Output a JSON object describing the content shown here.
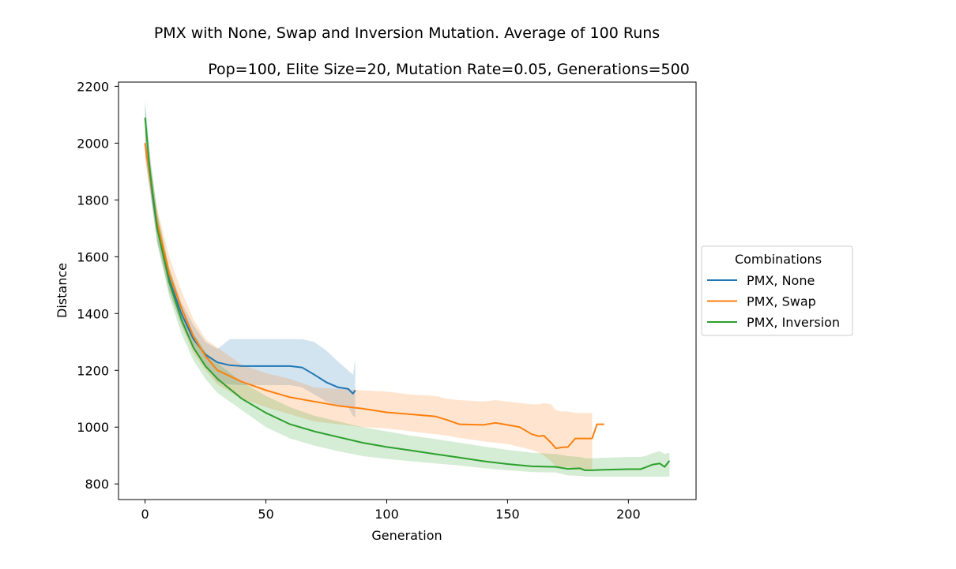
{
  "chart_data": {
    "type": "line",
    "suptitle": "PMX with None, Swap and Inversion Mutation. Average of 100 Runs",
    "title": "Pop=100, Elite Size=20, Mutation Rate=0.05, Generations=500",
    "xlabel": "Generation",
    "ylabel": "Distance",
    "xlim": [
      -11,
      228
    ],
    "ylim": [
      745,
      2215
    ],
    "xticks": [
      0,
      50,
      100,
      150,
      200
    ],
    "yticks": [
      800,
      1000,
      1200,
      1400,
      1600,
      1800,
      2000,
      2200
    ],
    "legend_title": "Combinations",
    "legend_position": "right, outside plot",
    "series": [
      {
        "name": "PMX, None",
        "color": "#1f77b4",
        "x": [
          0,
          2,
          5,
          10,
          15,
          20,
          25,
          30,
          35,
          40,
          50,
          60,
          65,
          70,
          75,
          80,
          84,
          86,
          87
        ],
        "y": [
          2000,
          1880,
          1700,
          1520,
          1400,
          1310,
          1255,
          1228,
          1218,
          1215,
          1215,
          1215,
          1210,
          1185,
          1158,
          1140,
          1135,
          1118,
          1130
        ],
        "lower": [
          1950,
          1830,
          1650,
          1475,
          1360,
          1280,
          1218,
          1160,
          1150,
          1148,
          1148,
          1148,
          1140,
          1115,
          1090,
          1075,
          1070,
          1040,
          1035
        ],
        "upper": [
          2150,
          1960,
          1750,
          1560,
          1440,
          1360,
          1300,
          1275,
          1310,
          1310,
          1310,
          1310,
          1310,
          1300,
          1270,
          1230,
          1200,
          1185,
          1240
        ]
      },
      {
        "name": "PMX, Swap",
        "color": "#ff7f0e",
        "x": [
          0,
          2,
          5,
          10,
          15,
          20,
          25,
          30,
          40,
          50,
          60,
          70,
          80,
          90,
          100,
          110,
          120,
          125,
          130,
          140,
          145,
          150,
          155,
          160,
          163,
          165,
          168,
          170,
          172,
          175,
          178,
          180,
          185,
          187,
          190
        ],
        "y": [
          2000,
          1880,
          1720,
          1540,
          1420,
          1320,
          1250,
          1200,
          1160,
          1130,
          1105,
          1090,
          1075,
          1065,
          1052,
          1045,
          1038,
          1025,
          1010,
          1008,
          1015,
          1008,
          1000,
          975,
          968,
          970,
          945,
          925,
          928,
          930,
          960,
          960,
          960,
          1010,
          1010
        ],
        "lower": [
          1950,
          1830,
          1660,
          1480,
          1360,
          1260,
          1200,
          1150,
          1100,
          1070,
          1045,
          1020,
          1010,
          1000,
          995,
          985,
          975,
          970,
          962,
          950,
          945,
          940,
          930,
          920,
          910,
          900,
          880,
          862,
          860,
          860,
          850,
          850,
          850,
          null,
          null
        ],
        "upper": [
          2050,
          1930,
          1770,
          1600,
          1480,
          1380,
          1310,
          1280,
          1220,
          1190,
          1170,
          1140,
          1135,
          1130,
          1125,
          1115,
          1110,
          1100,
          1095,
          1090,
          1095,
          1090,
          1085,
          1080,
          1080,
          1085,
          1080,
          1060,
          1055,
          1055,
          1050,
          1050,
          1050,
          null,
          null
        ]
      },
      {
        "name": "PMX, Inversion",
        "color": "#2ca02c",
        "x": [
          0,
          2,
          5,
          10,
          15,
          20,
          25,
          30,
          40,
          50,
          60,
          70,
          80,
          90,
          100,
          110,
          120,
          130,
          140,
          150,
          160,
          170,
          175,
          180,
          182,
          185,
          190,
          200,
          205,
          207,
          210,
          213,
          215,
          217
        ],
        "y": [
          2090,
          1900,
          1700,
          1510,
          1380,
          1280,
          1215,
          1170,
          1100,
          1050,
          1010,
          985,
          965,
          945,
          930,
          918,
          905,
          893,
          880,
          870,
          862,
          860,
          853,
          855,
          848,
          848,
          850,
          852,
          852,
          858,
          868,
          872,
          860,
          882
        ],
        "lower": [
          2040,
          1850,
          1650,
          1460,
          1330,
          1235,
          1170,
          1120,
          1060,
          1000,
          960,
          935,
          915,
          898,
          888,
          880,
          872,
          865,
          856,
          848,
          842,
          840,
          830,
          828,
          826,
          826,
          826,
          826,
          826,
          826,
          826,
          826,
          826,
          826
        ],
        "upper": [
          2140,
          1950,
          1760,
          1560,
          1430,
          1330,
          1265,
          1225,
          1160,
          1110,
          1070,
          1040,
          1020,
          1000,
          985,
          970,
          958,
          945,
          932,
          920,
          910,
          905,
          898,
          895,
          890,
          890,
          892,
          895,
          895,
          898,
          908,
          915,
          905,
          910
        ]
      }
    ]
  }
}
